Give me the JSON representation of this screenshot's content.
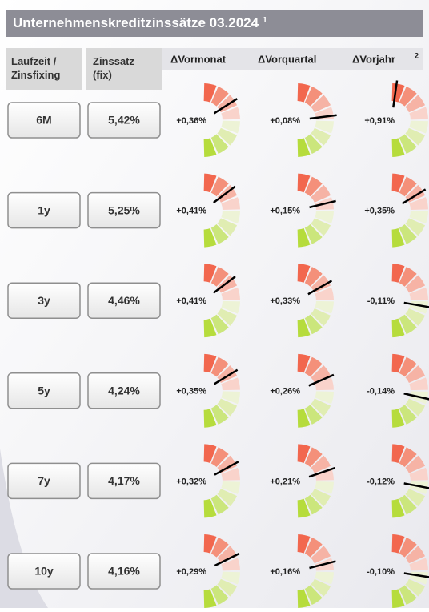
{
  "header": {
    "title": "Unternehmenskreditzinssätze 03.2024",
    "title_note": "1"
  },
  "table": {
    "columns": [
      "Laufzeit / Zinsfixing",
      "Zinssatz (fix)",
      "ΔVormonat",
      "ΔVorquartal",
      "ΔVorjahr"
    ],
    "column_note": "2",
    "rows": [
      {
        "term": "6M",
        "rate": "5,42%",
        "changes": [
          0.36,
          0.08,
          0.91
        ],
        "change_labels": [
          "+0,36%",
          "+0,08%",
          "+0,91%"
        ]
      },
      {
        "term": "1y",
        "rate": "5,25%",
        "changes": [
          0.41,
          0.15,
          0.35
        ],
        "change_labels": [
          "+0,41%",
          "+0,15%",
          "+0,35%"
        ]
      },
      {
        "term": "3y",
        "rate": "4,46%",
        "changes": [
          0.41,
          0.33,
          -0.11
        ],
        "change_labels": [
          "+0,41%",
          "+0,33%",
          "-0,11%"
        ]
      },
      {
        "term": "5y",
        "rate": "4,24%",
        "changes": [
          0.35,
          0.26,
          -0.14
        ],
        "change_labels": [
          "+0,35%",
          "+0,26%",
          "-0,14%"
        ]
      },
      {
        "term": "7y",
        "rate": "4,17%",
        "changes": [
          0.32,
          0.21,
          -0.12
        ],
        "change_labels": [
          "+0,32%",
          "+0,21%",
          "-0,12%"
        ]
      },
      {
        "term": "10y",
        "rate": "4,16%",
        "changes": [
          0.29,
          0.16,
          -0.1
        ],
        "change_labels": [
          "+0,29%",
          "+0,16%",
          "-0,10%"
        ]
      }
    ]
  }
}
